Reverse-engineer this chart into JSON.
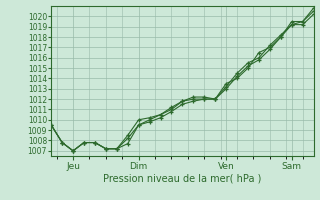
{
  "title": "",
  "xlabel": "Pression niveau de la mer( hPa )",
  "ylabel": "",
  "bg_color": "#cde8d8",
  "grid_color": "#99bbaa",
  "line_color": "#2d6a2d",
  "ylim": [
    1006.5,
    1021.0
  ],
  "yticks": [
    1007,
    1008,
    1009,
    1010,
    1011,
    1012,
    1013,
    1014,
    1015,
    1016,
    1017,
    1018,
    1019,
    1020
  ],
  "day_labels": [
    "Jeu",
    "Dim",
    "Ven",
    "Sam"
  ],
  "day_positions": [
    0.083,
    0.333,
    0.667,
    0.917
  ],
  "series": [
    [
      1009.5,
      1007.8,
      1007.0,
      1007.8,
      1007.8,
      1007.2,
      1007.2,
      1007.7,
      1009.5,
      1010.0,
      1010.5,
      1011.2,
      1011.8,
      1012.0,
      1012.0,
      1012.0,
      1013.5,
      1014.0,
      1015.0,
      1016.5,
      1017.0,
      1018.0,
      1019.5,
      1019.5,
      1020.5
    ],
    [
      1009.5,
      1007.8,
      1007.0,
      1007.8,
      1007.8,
      1007.2,
      1007.2,
      1008.2,
      1009.5,
      1009.8,
      1010.2,
      1010.8,
      1011.5,
      1011.8,
      1012.0,
      1012.0,
      1013.0,
      1014.2,
      1015.2,
      1015.8,
      1016.8,
      1018.0,
      1019.2,
      1019.2,
      1020.2
    ],
    [
      1009.5,
      1007.8,
      1007.0,
      1007.8,
      1007.8,
      1007.2,
      1007.2,
      1008.5,
      1010.0,
      1010.2,
      1010.5,
      1011.0,
      1011.8,
      1012.2,
      1012.2,
      1012.0,
      1013.2,
      1014.5,
      1015.5,
      1016.0,
      1017.2,
      1018.2,
      1019.2,
      1019.5,
      1020.8
    ]
  ]
}
